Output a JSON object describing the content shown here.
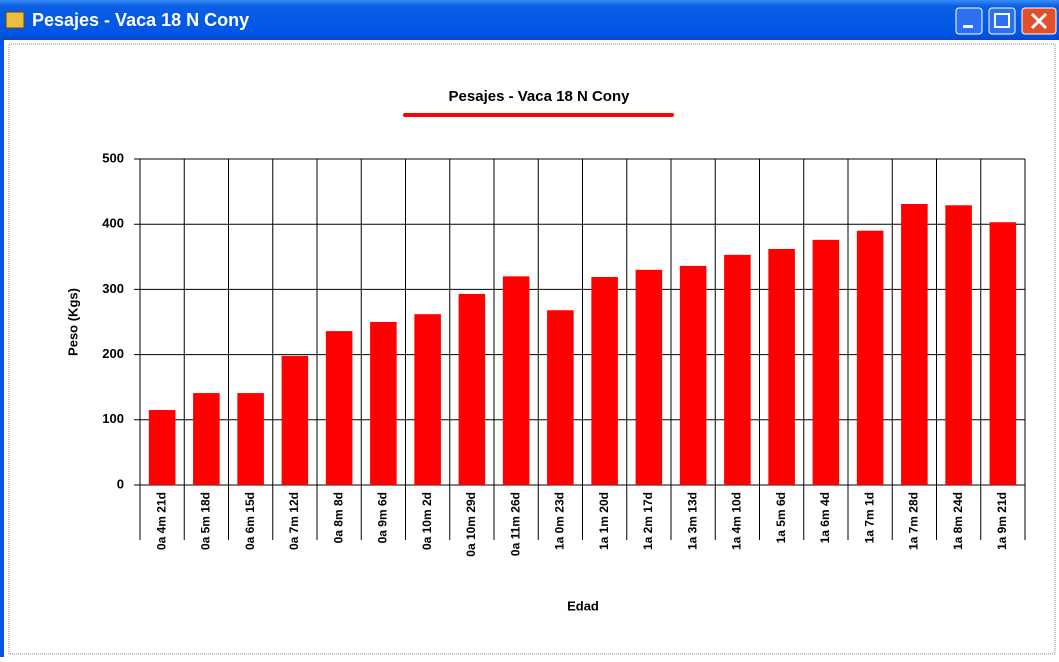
{
  "window": {
    "title": "Pesajes - Vaca 18 N Cony"
  },
  "chart_data": {
    "type": "bar",
    "title": "Pesajes - Vaca 18 N Cony",
    "x_label": "Edad",
    "y_label": "Peso (Kgs)",
    "categories": [
      "0a 4m 21d",
      "0a 5m 18d",
      "0a 6m 15d",
      "0a 7m 12d",
      "0a 8m 8d",
      "0a 9m 6d",
      "0a 10m 2d",
      "0a 10m 29d",
      "0a 11m 26d",
      "1a 0m 23d",
      "1a 1m 20d",
      "1a 2m 17d",
      "1a 3m 13d",
      "1a 4m 10d",
      "1a 5m 6d",
      "1a 6m 4d",
      "1a 7m 1d",
      "1a 7m 28d",
      "1a 8m 24d",
      "1a 9m 21d"
    ],
    "values": [
      115,
      141,
      141,
      198,
      236,
      250,
      262,
      293,
      320,
      268,
      319,
      330,
      336,
      353,
      362,
      376,
      390,
      431,
      429,
      403
    ],
    "color": "#ff0000",
    "ylim": [
      0,
      500
    ],
    "yticks": [
      0,
      100,
      200,
      300,
      400,
      500
    ],
    "grid": true
  }
}
